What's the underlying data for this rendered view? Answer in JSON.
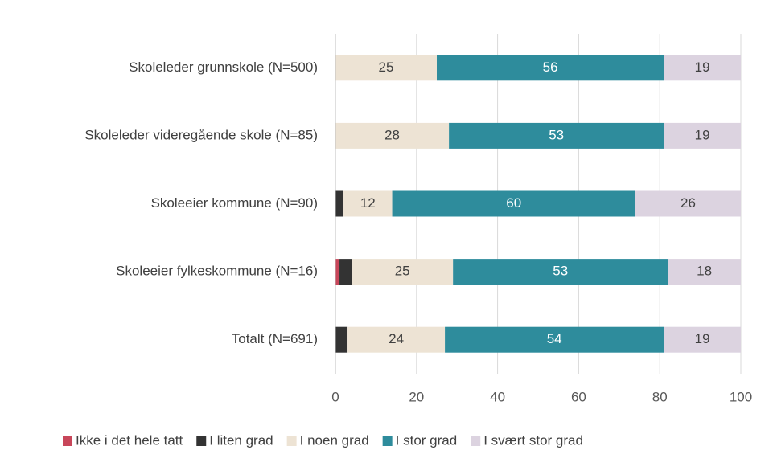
{
  "chart_data": {
    "type": "stacked_barh",
    "categories": [
      "Skoleleder grunnskole (N=500)",
      "Skoleleder videregående skole (N=85)",
      "Skoleeier kommune (N=90)",
      "Skoleeier fylkeskommune (N=16)",
      "Totalt (N=691)"
    ],
    "series": [
      {
        "name": "Ikke i det hele tatt",
        "color": "#c8465a",
        "label_color": "#404040",
        "values": [
          0,
          0,
          0,
          1,
          0
        ]
      },
      {
        "name": "I liten grad",
        "color": "#333333",
        "label_color": "#ffffff",
        "values": [
          0,
          0,
          2,
          3,
          3
        ]
      },
      {
        "name": "I noen grad",
        "color": "#ede3d4",
        "label_color": "#404040",
        "values": [
          25,
          28,
          12,
          25,
          24
        ]
      },
      {
        "name": "I stor grad",
        "color": "#2e8c9c",
        "label_color": "#ffffff",
        "values": [
          56,
          53,
          60,
          53,
          54
        ]
      },
      {
        "name": "I svært stor grad",
        "color": "#dcd3e0",
        "label_color": "#404040",
        "values": [
          19,
          19,
          26,
          18,
          19
        ]
      }
    ],
    "xlim": [
      0,
      100
    ],
    "xticks": [
      0,
      20,
      40,
      60,
      80,
      100
    ],
    "grid": true,
    "legend": "bottom"
  }
}
